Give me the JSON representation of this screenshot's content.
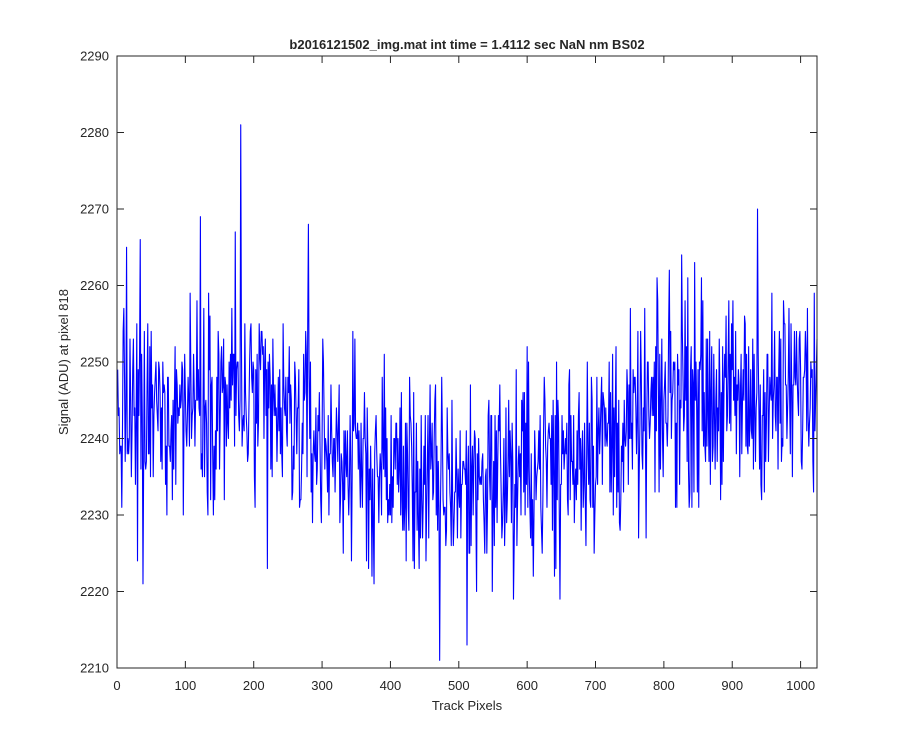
{
  "chart_data": {
    "type": "line",
    "title": "b2016121502_img.mat int time = 1.4112 sec  NaN nm BS02",
    "xlabel": "Track Pixels",
    "ylabel": "Signal (ADU) at pixel 818",
    "xlim": [
      0,
      1024
    ],
    "ylim": [
      2210,
      2290
    ],
    "xticks": [
      0,
      100,
      200,
      300,
      400,
      500,
      600,
      700,
      800,
      900,
      1000
    ],
    "yticks": [
      2210,
      2220,
      2230,
      2240,
      2250,
      2260,
      2270,
      2280,
      2290
    ],
    "grid": false,
    "box": true,
    "series": [
      {
        "color": "#0000ff",
        "x_start": 1,
        "x_step": 1,
        "noise_amplitude": 6.5,
        "envelope": [
          [
            1,
            2242
          ],
          [
            50,
            2243
          ],
          [
            120,
            2246
          ],
          [
            180,
            2245
          ],
          [
            250,
            2242
          ],
          [
            300,
            2240
          ],
          [
            350,
            2237
          ],
          [
            400,
            2236
          ],
          [
            470,
            2234
          ],
          [
            530,
            2235
          ],
          [
            600,
            2236
          ],
          [
            650,
            2238
          ],
          [
            700,
            2240
          ],
          [
            760,
            2241
          ],
          [
            820,
            2246
          ],
          [
            900,
            2245
          ],
          [
            960,
            2245
          ],
          [
            1024,
            2247
          ]
        ],
        "peaks": [
          [
            181,
            2281
          ],
          [
            122,
            2269
          ],
          [
            937,
            2270
          ],
          [
            34,
            2266
          ],
          [
            14,
            2265
          ],
          [
            173,
            2267
          ],
          [
            280,
            2268
          ],
          [
            1020,
            2259
          ],
          [
            808,
            2262
          ],
          [
            845,
            2263
          ],
          [
            826,
            2264
          ],
          [
            472,
            2211
          ],
          [
            512,
            2213
          ],
          [
            38,
            2221
          ],
          [
            220,
            2223
          ],
          [
            373,
            2222
          ],
          [
            648,
            2219
          ],
          [
            580,
            2219
          ],
          [
            30,
            2224
          ],
          [
            640,
            2222
          ]
        ]
      }
    ]
  }
}
